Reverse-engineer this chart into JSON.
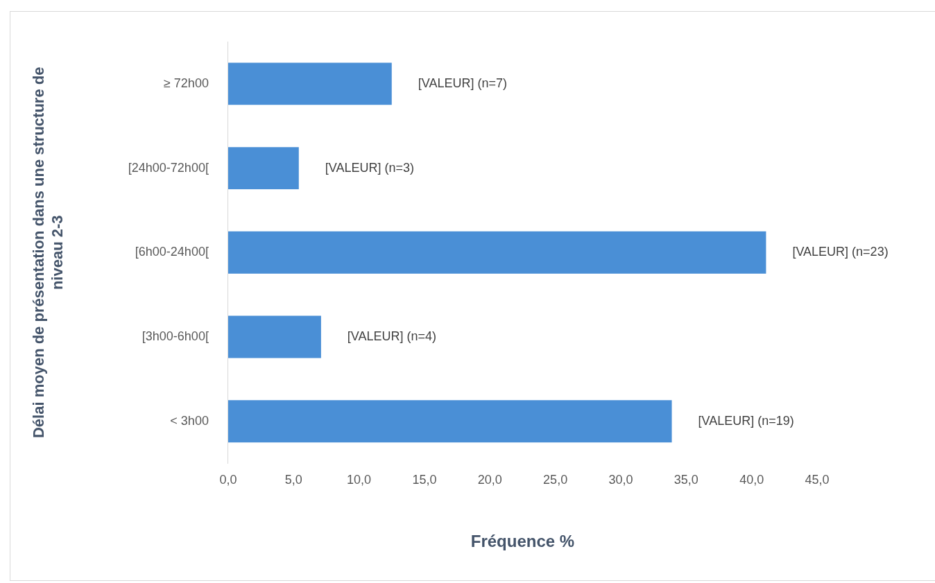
{
  "chart_data": {
    "type": "bar",
    "orientation": "horizontal",
    "categories": [
      "≥ 72h00",
      "[24h00-72h00[",
      "[6h00-24h00[",
      "[3h00-6h00[",
      "< 3h00"
    ],
    "values": [
      12.5,
      5.4,
      41.1,
      7.1,
      33.9
    ],
    "annotations": [
      {
        "text": "[VALEUR] (n=7)",
        "x": 12.5,
        "y": "≥ 72h00"
      },
      {
        "text": "[VALEUR] (n=3)",
        "x": 5.4,
        "y": "[24h00-72h00["
      },
      {
        "text": "[VALEUR] (n=23)",
        "x": 41.1,
        "y": "[6h00-24h00["
      },
      {
        "text": "[VALEUR] (n=4)",
        "x": 7.1,
        "y": "[3h00-6h00["
      },
      {
        "text": "[VALEUR] (n=19)",
        "x": 33.9,
        "y": "< 3h00"
      }
    ],
    "color": "#4a8fd6",
    "xlabel": "Fréquence %",
    "ylabel": "Délai moyen de présentation dans une structure de niveau 2-3",
    "xlim": [
      0,
      45
    ],
    "xticks": [
      {
        "value": 0,
        "label": "0,0"
      },
      {
        "value": 5,
        "label": "5,0"
      },
      {
        "value": 10,
        "label": "10,0"
      },
      {
        "value": 15,
        "label": "15,0"
      },
      {
        "value": 20,
        "label": "20,0"
      },
      {
        "value": 25,
        "label": "25,0"
      },
      {
        "value": 30,
        "label": "30,0"
      },
      {
        "value": 35,
        "label": "35,0"
      },
      {
        "value": 40,
        "label": "40,0"
      },
      {
        "value": 45,
        "label": "45,0"
      }
    ],
    "grid": false,
    "legend": false
  }
}
